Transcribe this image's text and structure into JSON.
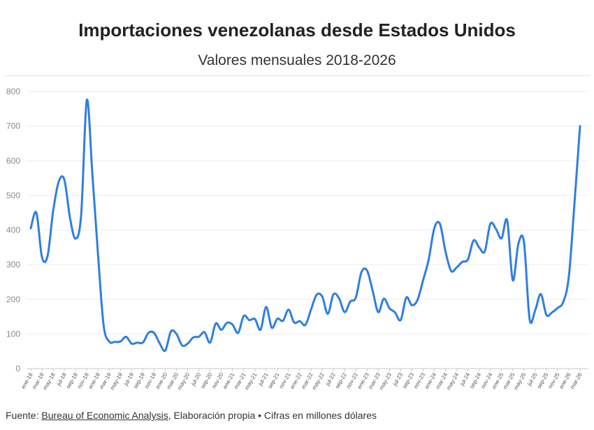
{
  "header": {
    "title": "Importaciones venezolanas desde Estados Unidos",
    "subtitle": "Valores mensuales 2018-2026"
  },
  "footer": {
    "prefix": "Fuente: ",
    "source_link": "Bureau of Economic Analysis",
    "suffix": ", Elaboración propia • Cifras en millones dólares"
  },
  "colors": {
    "line": "#2f7ee0",
    "grid": "#ececec",
    "axis": "#c8c8c8"
  },
  "chart_data": {
    "type": "line",
    "ylim": [
      0,
      800
    ],
    "yticks": [
      0,
      100,
      200,
      300,
      400,
      500,
      600,
      700,
      800
    ],
    "grid": "horizontal",
    "tick_labels": [
      "ene-18",
      "mar-18",
      "may-18",
      "jul-18",
      "sep-18",
      "nov-18",
      "ene-19",
      "mar-19",
      "may-19",
      "jul-19",
      "sep-19",
      "nov-19",
      "ene-20",
      "mar-20",
      "may-20",
      "jul-20",
      "sep-20",
      "nov-20",
      "ene-21",
      "mar-21",
      "may-21",
      "jul-21",
      "sep-21",
      "nov-21",
      "ene-22",
      "mar-22",
      "may-22",
      "jul-22",
      "sep-22",
      "nov-22",
      "ene-23",
      "mar-23",
      "may-23",
      "jul-23",
      "sep-23",
      "nov-23",
      "ene-24",
      "mar-24",
      "may-24",
      "jul-24",
      "sep-24",
      "nov-24",
      "ene-25",
      "mar-25",
      "may-25",
      "jul-25",
      "sep-25",
      "nov-25",
      "ene-26",
      "mar-26"
    ],
    "series": [
      {
        "values": [
          405,
          450,
          322,
          325,
          455,
          540,
          545,
          435,
          375,
          445,
          775,
          560,
          330,
          125,
          78,
          77,
          78,
          92,
          72,
          75,
          75,
          103,
          103,
          73,
          52,
          107,
          100,
          67,
          72,
          90,
          92,
          105,
          75,
          130,
          112,
          132,
          127,
          103,
          152,
          140,
          143,
          112,
          178,
          118,
          144,
          138,
          170,
          133,
          137,
          126,
          170,
          213,
          208,
          158,
          214,
          203,
          163,
          193,
          205,
          278,
          283,
          225,
          163,
          202,
          174,
          162,
          140,
          205,
          183,
          198,
          255,
          315,
          405,
          418,
          338,
          282,
          292,
          308,
          315,
          370,
          350,
          338,
          418,
          403,
          376,
          428,
          255,
          360,
          365,
          143,
          168,
          215,
          155,
          162,
          175,
          192,
          265,
          475,
          700
        ]
      }
    ]
  }
}
